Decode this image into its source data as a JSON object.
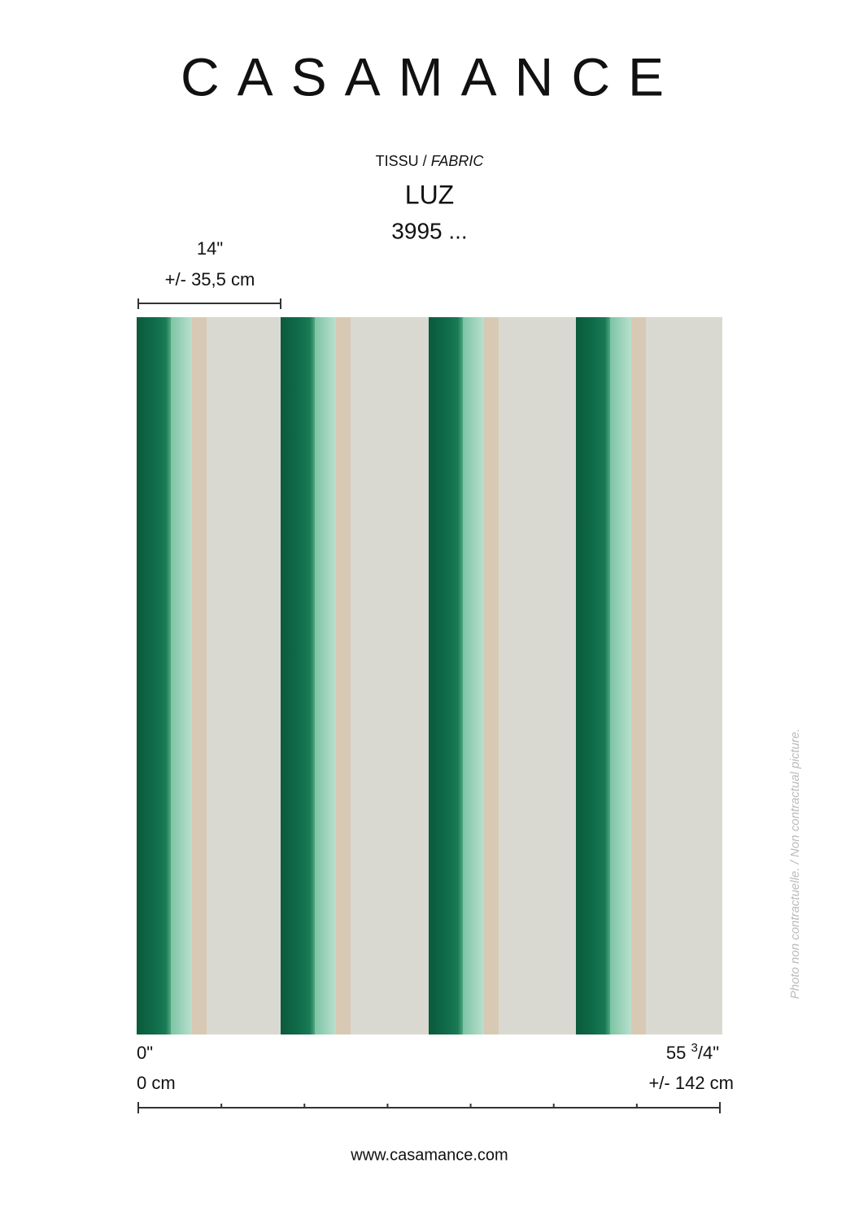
{
  "header": {
    "brand": "CASAMANCE",
    "category": "TISSU",
    "separator": "/",
    "category_en": "FABRIC",
    "product": "LUZ",
    "reference": "3995 ..."
  },
  "repeat": {
    "inches": "14\"",
    "cm": "+/- 35,5 cm"
  },
  "width_start": {
    "inches": "0\"",
    "cm": "0 cm"
  },
  "width_end": {
    "whole": "55",
    "numerator": "3",
    "slash": "/",
    "denominator": "4",
    "unit": "\"",
    "cm": "+/- 142 cm"
  },
  "footer": {
    "website": "www.casamance.com"
  },
  "disclaimer": "Photo non contractuelle. / Non contractual picture."
}
